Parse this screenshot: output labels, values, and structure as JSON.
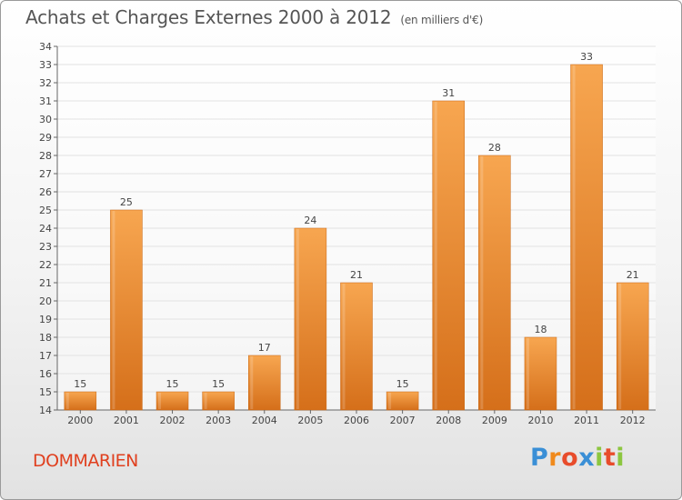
{
  "title": "Achats et Charges Externes 2000 à 2012",
  "unit": "(en milliers d'€)",
  "city": "DOMMARIEN",
  "logo": {
    "text": "Proxiti",
    "colors": [
      "#3a8fd6",
      "#f08a1c",
      "#e84c2b",
      "#3a8fd6",
      "#8cc63f",
      "#e84c2b",
      "#8cc63f"
    ]
  },
  "colors": {
    "bar_light": "#f7a650",
    "bar_dark": "#d56f1a",
    "grid": "#e2e2e2",
    "text": "#444444"
  },
  "chart_data": {
    "type": "bar",
    "categories": [
      "2000",
      "2001",
      "2002",
      "2003",
      "2004",
      "2005",
      "2006",
      "2007",
      "2008",
      "2009",
      "2010",
      "2011",
      "2012"
    ],
    "values": [
      15,
      25,
      15,
      15,
      17,
      24,
      21,
      15,
      31,
      28,
      18,
      33,
      21
    ],
    "ylim": [
      14,
      34
    ],
    "yticks": [
      14,
      15,
      16,
      17,
      18,
      19,
      20,
      21,
      22,
      23,
      24,
      25,
      26,
      27,
      28,
      29,
      30,
      31,
      32,
      33,
      34
    ],
    "grid": true,
    "data_labels": true
  }
}
